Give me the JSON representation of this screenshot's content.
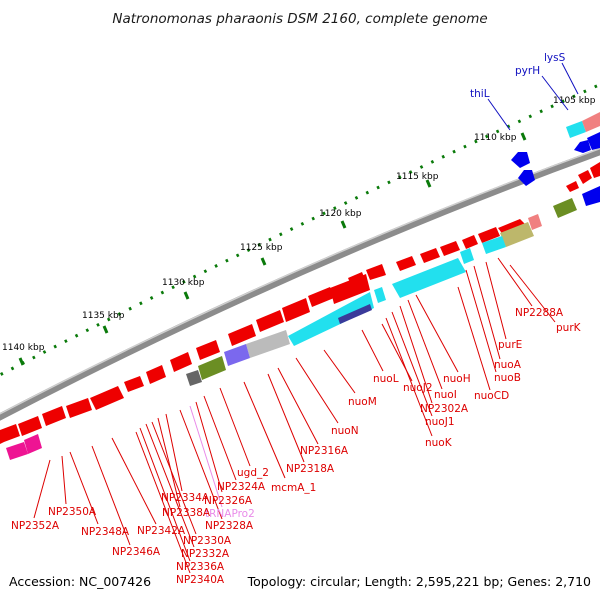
{
  "title": "Natronomonas pharaonis DSM 2160, complete genome",
  "footer": {
    "accession": "Accession: NC_007426",
    "summary": "Topology: circular; Length: 2,595,221 bp; Genes: 2,710"
  },
  "scale_labels": [
    "1105 kbp",
    "1110 kbp",
    "1115 kbp",
    "1120 kbp",
    "1125 kbp",
    "1130 kbp",
    "1135 kbp",
    "1140 kbp"
  ],
  "gene_labels": [
    {
      "text": "lysS",
      "color": "#1010c0"
    },
    {
      "text": "pyrH",
      "color": "#1010c0"
    },
    {
      "text": "thiL",
      "color": "#1010c0"
    },
    {
      "text": "purK",
      "color": "#dd0000"
    },
    {
      "text": "NP2288A",
      "color": "#dd0000"
    },
    {
      "text": "purE",
      "color": "#dd0000"
    },
    {
      "text": "nuoA",
      "color": "#dd0000"
    },
    {
      "text": "nuoB",
      "color": "#dd0000"
    },
    {
      "text": "nuoCD",
      "color": "#dd0000"
    },
    {
      "text": "nuoH",
      "color": "#dd0000"
    },
    {
      "text": "nuoI",
      "color": "#dd0000"
    },
    {
      "text": "NP2302A",
      "color": "#dd0000"
    },
    {
      "text": "nuoJ1",
      "color": "#dd0000"
    },
    {
      "text": "nuoK",
      "color": "#dd0000"
    },
    {
      "text": "nuoJ2",
      "color": "#dd0000"
    },
    {
      "text": "nuoL",
      "color": "#dd0000"
    },
    {
      "text": "nuoM",
      "color": "#dd0000"
    },
    {
      "text": "nuoN",
      "color": "#dd0000"
    },
    {
      "text": "NP2316A",
      "color": "#dd0000"
    },
    {
      "text": "NP2318A",
      "color": "#dd0000"
    },
    {
      "text": "mcmA_1",
      "color": "#dd0000"
    },
    {
      "text": "ugd_2",
      "color": "#dd0000"
    },
    {
      "text": "NP2324A",
      "color": "#dd0000"
    },
    {
      "text": "NP2326A",
      "color": "#dd0000"
    },
    {
      "text": "tRNAPro2",
      "color": "#e98be9"
    },
    {
      "text": "NP2328A",
      "color": "#dd0000"
    },
    {
      "text": "NP2334A",
      "color": "#dd0000"
    },
    {
      "text": "NP2338A",
      "color": "#dd0000"
    },
    {
      "text": "NP2330A",
      "color": "#dd0000"
    },
    {
      "text": "NP2332A",
      "color": "#dd0000"
    },
    {
      "text": "NP2336A",
      "color": "#dd0000"
    },
    {
      "text": "NP2340A",
      "color": "#dd0000"
    },
    {
      "text": "NP2342A",
      "color": "#dd0000"
    },
    {
      "text": "NP2346A",
      "color": "#dd0000"
    },
    {
      "text": "NP2348A",
      "color": "#dd0000"
    },
    {
      "text": "NP2350A",
      "color": "#dd0000"
    },
    {
      "text": "NP2352A",
      "color": "#dd0000"
    }
  ],
  "colors": {
    "backbone": "#8c8c8c",
    "scale_tick": "#0a7a0a",
    "forward_gene": "#ee0000",
    "reverse_gene": "#0000ee",
    "nuo_operon": "#22e0ee",
    "nuo_dark": "#3a3a9a",
    "olive": "#6b8e23",
    "khaki": "#bdb76b",
    "purple": "#7b68ee",
    "grey": "#666666",
    "light_grey": "#bbbbbb",
    "salmon": "#f08080",
    "pink": "#ee1493"
  }
}
